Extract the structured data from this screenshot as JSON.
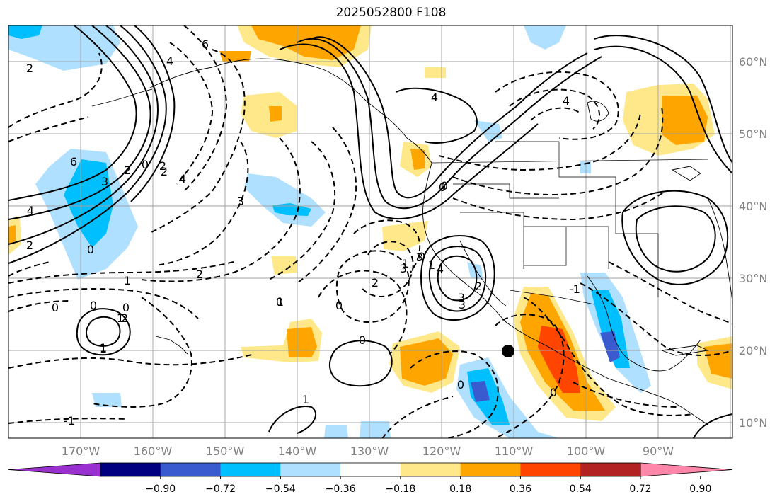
{
  "title": "2025052800 F108",
  "map": {
    "lat_labels": [
      "60°N",
      "50°N",
      "40°N",
      "30°N",
      "20°N",
      "10°N"
    ],
    "lon_labels": [
      "170°W",
      "160°W",
      "150°W",
      "140°W",
      "130°W",
      "120°W",
      "110°W",
      "100°W",
      "90°W"
    ],
    "contour_labels": [
      "6",
      "4",
      "2",
      "4",
      "4",
      "6",
      "3",
      "2",
      "0",
      "4",
      "3",
      "2",
      "0",
      "4",
      "0",
      "2",
      "3",
      "3",
      "2",
      "1",
      "0",
      "1",
      "0",
      "1",
      "0",
      "1",
      "2",
      "0",
      "1",
      "0",
      "0",
      "-1",
      "2",
      "0",
      "1",
      "0",
      "-1",
      "0",
      "1",
      "2",
      "3",
      "4",
      "3",
      "2",
      "1",
      "0",
      "-1"
    ],
    "grid": true,
    "marker": "black-dot"
  },
  "colorbar": {
    "labels": [
      "−0.90",
      "−0.72",
      "−0.54",
      "−0.36",
      "−0.18",
      "0.18",
      "0.36",
      "0.54",
      "0.72",
      "0.90"
    ],
    "colors": [
      "#9b30d0",
      "#000080",
      "#3a5bd0",
      "#00bfff",
      "#b0e0ff",
      "#ffffff",
      "#ffe88a",
      "#ffa500",
      "#ff4500",
      "#b22222",
      "#ff88aa"
    ]
  },
  "colors": {
    "neg_light": "#b0e0ff",
    "neg_mid": "#00bfff",
    "neg_strong": "#3a5bd0",
    "pos_light": "#ffe88a",
    "pos_mid": "#ffa500",
    "pos_strong": "#ff4500"
  }
}
